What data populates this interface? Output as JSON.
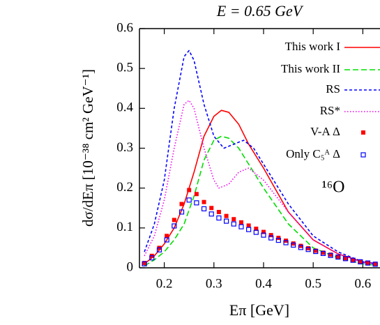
{
  "chart_data": {
    "type": "line",
    "title": "E = 0.65 GeV",
    "xlabel": "Eπ [GeV]",
    "ylabel": "dσ/dEπ [10⁻³⁸ cm² GeV⁻¹]",
    "annotation": "¹⁶O",
    "xlim": [
      0.15,
      0.65
    ],
    "ylim": [
      0,
      0.6
    ],
    "xticks": [
      0.2,
      0.3,
      0.4,
      0.5,
      0.6
    ],
    "yticks": [
      0,
      0.1,
      0.2,
      0.3,
      0.4,
      0.5,
      0.6
    ],
    "legend": "upper right",
    "series": [
      {
        "name": "This work I",
        "color": "#ff0000",
        "linestyle": "solid",
        "x": [
          0.16,
          0.18,
          0.2,
          0.22,
          0.24,
          0.26,
          0.28,
          0.3,
          0.315,
          0.33,
          0.35,
          0.37,
          0.4,
          0.45,
          0.5,
          0.55,
          0.6,
          0.63
        ],
        "values": [
          0.01,
          0.03,
          0.06,
          0.1,
          0.16,
          0.24,
          0.33,
          0.38,
          0.395,
          0.39,
          0.36,
          0.31,
          0.25,
          0.14,
          0.07,
          0.035,
          0.015,
          0.01
        ]
      },
      {
        "name": "This work II",
        "color": "#00dd00",
        "linestyle": "dashed",
        "x": [
          0.16,
          0.18,
          0.2,
          0.22,
          0.24,
          0.26,
          0.28,
          0.3,
          0.315,
          0.33,
          0.35,
          0.37,
          0.4,
          0.45,
          0.5,
          0.55,
          0.6,
          0.63
        ],
        "values": [
          0.005,
          0.02,
          0.04,
          0.07,
          0.11,
          0.18,
          0.27,
          0.32,
          0.33,
          0.325,
          0.3,
          0.26,
          0.2,
          0.11,
          0.05,
          0.025,
          0.01,
          0.006
        ]
      },
      {
        "name": "RS",
        "color": "#0000ff",
        "linestyle": "short-dashed",
        "x": [
          0.16,
          0.18,
          0.2,
          0.22,
          0.24,
          0.25,
          0.26,
          0.28,
          0.3,
          0.32,
          0.34,
          0.36,
          0.38,
          0.4,
          0.45,
          0.5,
          0.55,
          0.6,
          0.63
        ],
        "values": [
          0.04,
          0.11,
          0.22,
          0.4,
          0.53,
          0.545,
          0.52,
          0.41,
          0.33,
          0.3,
          0.31,
          0.32,
          0.3,
          0.26,
          0.16,
          0.08,
          0.04,
          0.015,
          0.01
        ]
      },
      {
        "name": "RS*",
        "color": "#ee00ee",
        "linestyle": "dotted",
        "x": [
          0.16,
          0.18,
          0.2,
          0.22,
          0.24,
          0.25,
          0.26,
          0.28,
          0.3,
          0.31,
          0.33,
          0.35,
          0.37,
          0.4,
          0.45,
          0.5,
          0.55,
          0.6,
          0.63
        ],
        "values": [
          0.03,
          0.08,
          0.17,
          0.3,
          0.41,
          0.42,
          0.4,
          0.3,
          0.22,
          0.2,
          0.21,
          0.24,
          0.25,
          0.22,
          0.14,
          0.07,
          0.035,
          0.012,
          0.008
        ]
      },
      {
        "name": "V-A Δ",
        "color": "#ff0000",
        "marker": "filled-square",
        "x": [
          0.16,
          0.175,
          0.19,
          0.205,
          0.22,
          0.235,
          0.25,
          0.265,
          0.28,
          0.295,
          0.31,
          0.325,
          0.34,
          0.355,
          0.37,
          0.385,
          0.4,
          0.415,
          0.43,
          0.445,
          0.46,
          0.475,
          0.49,
          0.505,
          0.52,
          0.535,
          0.55,
          0.565,
          0.58,
          0.595,
          0.61,
          0.625
        ],
        "values": [
          0.012,
          0.03,
          0.05,
          0.08,
          0.12,
          0.16,
          0.195,
          0.185,
          0.165,
          0.15,
          0.14,
          0.13,
          0.122,
          0.114,
          0.106,
          0.098,
          0.09,
          0.082,
          0.075,
          0.068,
          0.061,
          0.055,
          0.049,
          0.043,
          0.038,
          0.033,
          0.028,
          0.024,
          0.02,
          0.016,
          0.013,
          0.01
        ]
      },
      {
        "name": "Only C₅ᴬ Δ",
        "color": "#0000ff",
        "marker": "open-square",
        "x": [
          0.16,
          0.175,
          0.19,
          0.205,
          0.22,
          0.235,
          0.25,
          0.265,
          0.28,
          0.295,
          0.31,
          0.325,
          0.34,
          0.355,
          0.37,
          0.385,
          0.4,
          0.415,
          0.43,
          0.445,
          0.46,
          0.475,
          0.49,
          0.505,
          0.52,
          0.535,
          0.55,
          0.565,
          0.58,
          0.595,
          0.61,
          0.625
        ],
        "values": [
          0.01,
          0.025,
          0.045,
          0.07,
          0.105,
          0.14,
          0.17,
          0.163,
          0.148,
          0.135,
          0.125,
          0.117,
          0.11,
          0.103,
          0.096,
          0.089,
          0.082,
          0.075,
          0.069,
          0.063,
          0.057,
          0.051,
          0.046,
          0.041,
          0.036,
          0.031,
          0.027,
          0.023,
          0.019,
          0.015,
          0.012,
          0.009
        ]
      }
    ]
  }
}
